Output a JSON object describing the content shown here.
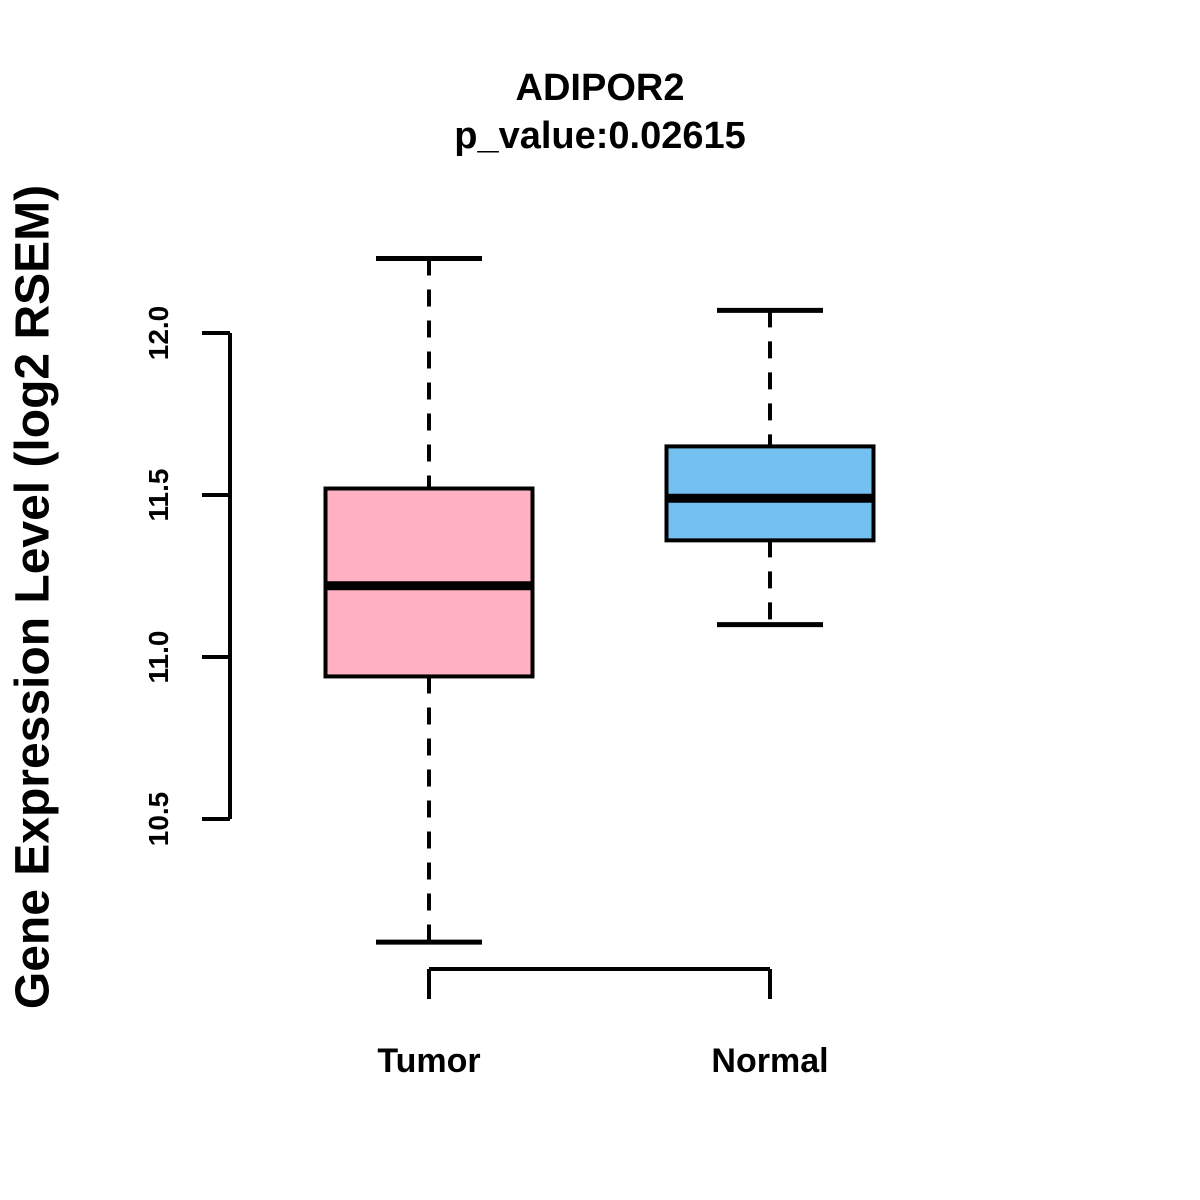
{
  "title": "ADIPOR2",
  "subtitle": "p_value:0.02615",
  "ylabel": "Gene Expression Level (log2 RSEM)",
  "colors": {
    "tumor_fill": "#FFB1C1",
    "normal_fill": "#74C1F1",
    "stroke": "#000000",
    "background": "#FFFFFF"
  },
  "chart_data": {
    "type": "boxplot",
    "title": "ADIPOR2",
    "subtitle": "p_value:0.02615",
    "xlabel": "",
    "ylabel": "Gene Expression Level (log2 RSEM)",
    "categories": [
      "Tumor",
      "Normal"
    ],
    "series": [
      {
        "name": "Tumor",
        "color": "#FFB1C1",
        "whisker_low": 10.12,
        "q1": 10.94,
        "median": 11.22,
        "q3": 11.52,
        "whisker_high": 12.23
      },
      {
        "name": "Normal",
        "color": "#74C1F1",
        "whisker_low": 11.1,
        "q1": 11.36,
        "median": 11.49,
        "q3": 11.65,
        "whisker_high": 12.07
      }
    ],
    "yticks": [
      10.5,
      11.0,
      11.5,
      12.0
    ],
    "ytick_labels": [
      "10.5",
      "11.0",
      "11.5",
      "12.0"
    ],
    "ylim": [
      10.1,
      12.3
    ],
    "grid": false,
    "legend": "none"
  }
}
